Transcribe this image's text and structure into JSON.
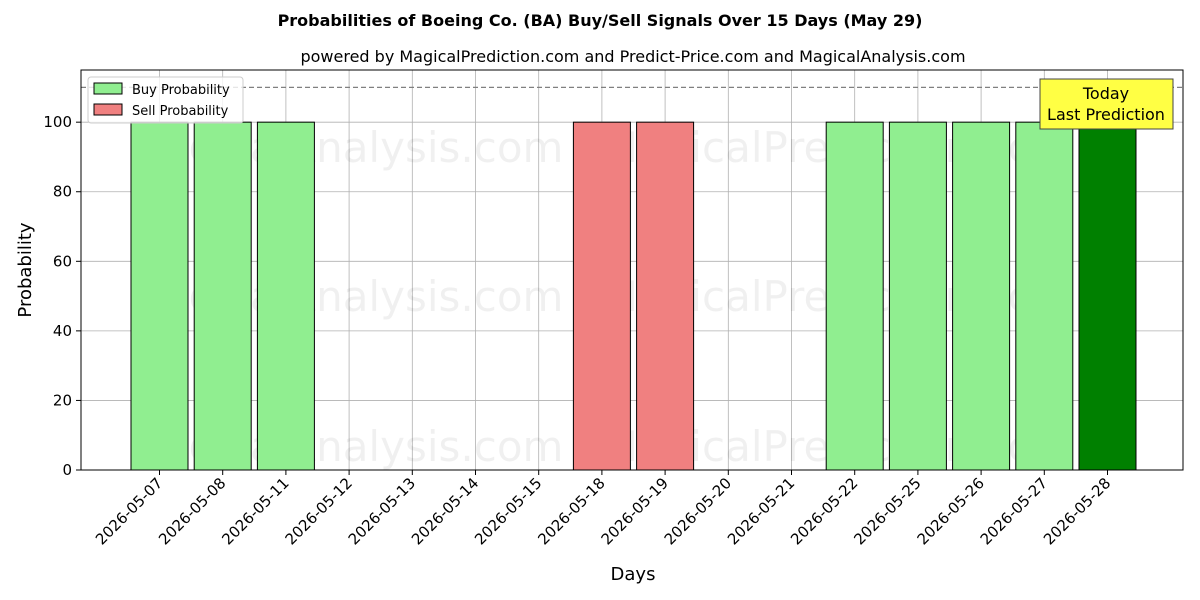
{
  "chart_data": {
    "type": "bar",
    "title": "Probabilities of Boeing Co. (BA) Buy/Sell Signals Over 15 Days (May 29)",
    "subtitle": "powered by MagicalPrediction.com and Predict-Price.com and MagicalAnalysis.com",
    "xlabel": "Days",
    "ylabel": "Probability",
    "ylim": [
      0,
      115
    ],
    "yticks": [
      0,
      20,
      40,
      60,
      80,
      100
    ],
    "grid": true,
    "legend_position": "top-left",
    "categories": [
      "2026-05-07",
      "2026-05-08",
      "2026-05-11",
      "2026-05-12",
      "2026-05-13",
      "2026-05-14",
      "2026-05-15",
      "2026-05-18",
      "2026-05-19",
      "2026-05-20",
      "2026-05-21",
      "2026-05-22",
      "2026-05-25",
      "2026-05-26",
      "2026-05-27",
      "2026-05-28"
    ],
    "series": [
      {
        "name": "Buy Probability",
        "color": "#90ee90",
        "values": [
          100,
          100,
          100,
          0,
          0,
          0,
          0,
          0,
          0,
          0,
          0,
          100,
          100,
          100,
          100,
          100
        ]
      },
      {
        "name": "Sell Probability",
        "color": "#f08080",
        "values": [
          0,
          0,
          0,
          0,
          0,
          0,
          0,
          100,
          100,
          0,
          0,
          0,
          0,
          0,
          0,
          0
        ]
      }
    ],
    "highlight": {
      "category": "2026-05-28",
      "color": "#008000"
    },
    "reference_line": {
      "y": 110,
      "style": "dashed",
      "color": "#808080"
    },
    "annotation": {
      "lines": [
        "Today",
        "Last Prediction"
      ],
      "background": "#ffff44"
    },
    "watermarks": [
      "MagicalAnalysis.com",
      "MagicalPrediction.com"
    ]
  }
}
